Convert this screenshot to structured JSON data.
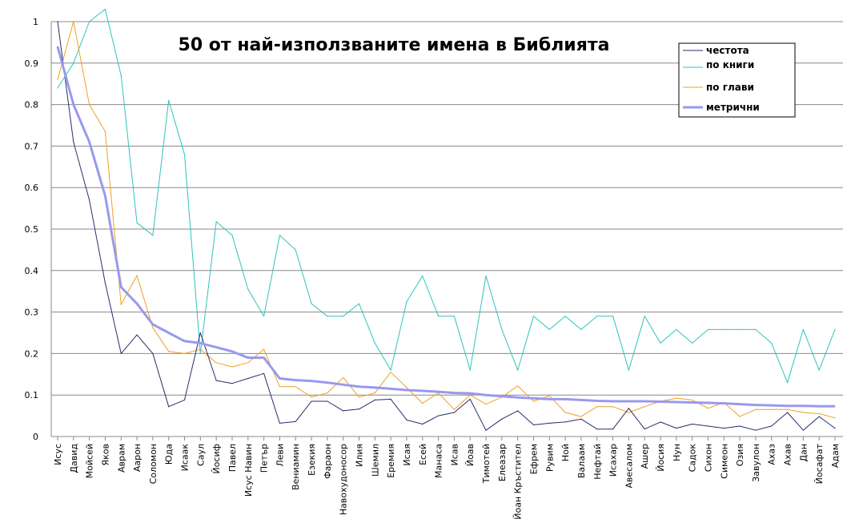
{
  "chart_data": {
    "type": "line",
    "title": "50 от най-използваните имена в Библията",
    "ylim": [
      0,
      1
    ],
    "yticks": [
      0,
      0.1,
      0.2,
      0.3,
      0.4,
      0.5,
      0.6,
      0.7,
      0.8,
      0.9,
      1
    ],
    "ytick_labels": [
      "0",
      "0.1",
      "0.2",
      "0.3",
      "0.4",
      "0.5",
      "0.6",
      "0.7",
      "0.8",
      "0.9",
      "1"
    ],
    "grid": true,
    "legend_position": "top-right",
    "categories": [
      "Исус",
      "Давид",
      "Мойсей",
      "Яков",
      "Аврам",
      "Аарон",
      "Соломон",
      "Юда",
      "Исаак",
      "Саул",
      "Йосиф",
      "Павел",
      "Исус Навин",
      "Петър",
      "Леви",
      "Вениамин",
      "Езекия",
      "Фараон",
      "Навохудоносор",
      "Илия",
      "Шемил",
      "Еремия",
      "Исая",
      "Есей",
      "Манаса",
      "Исав",
      "Йоав",
      "Тимотей",
      "Елеазар",
      "Йоан Кръстител",
      "Ефрем",
      "Рувим",
      "Ной",
      "Валаам",
      "Нефтай",
      "Исахар",
      "Авесалом",
      "Ашер",
      "Йосия",
      "Нун",
      "Садок",
      "Сихон",
      "Симеон",
      "Озия",
      "Завулон",
      "Ахаз",
      "Ахав",
      "Дан",
      "Йосафат",
      "Адам"
    ],
    "series": [
      {
        "name": "честота",
        "color": "#2e2a6e",
        "width": 1,
        "values": [
          1.0,
          0.71,
          0.57,
          0.37,
          0.2,
          0.245,
          0.2,
          0.072,
          0.088,
          0.25,
          0.135,
          0.128,
          0.14,
          0.152,
          0.032,
          0.036,
          0.085,
          0.085,
          0.062,
          0.066,
          0.088,
          0.09,
          0.04,
          0.03,
          0.05,
          0.058,
          0.09,
          0.015,
          0.042,
          0.062,
          0.028,
          0.032,
          0.035,
          0.042,
          0.018,
          0.018,
          0.068,
          0.018,
          0.035,
          0.02,
          0.03,
          0.025,
          0.02,
          0.025,
          0.015,
          0.025,
          0.058,
          0.015,
          0.048,
          0.02
        ]
      },
      {
        "name": "по книги",
        "color": "#2ec4be",
        "width": 1,
        "values": [
          0.84,
          0.9,
          1.0,
          1.03,
          0.87,
          0.515,
          0.485,
          0.81,
          0.68,
          0.2,
          0.518,
          0.485,
          0.355,
          0.29,
          0.485,
          0.45,
          0.32,
          0.29,
          0.29,
          0.32,
          0.225,
          0.16,
          0.325,
          0.387,
          0.29,
          0.29,
          0.16,
          0.387,
          0.258,
          0.16,
          0.29,
          0.258,
          0.29,
          0.258,
          0.29,
          0.29,
          0.16,
          0.29,
          0.225,
          0.258,
          0.225,
          0.258,
          0.258,
          0.258,
          0.258,
          0.225,
          0.13,
          0.258,
          0.16,
          0.258
        ]
      },
      {
        "name": "по глави",
        "color": "#f0a020",
        "width": 1,
        "values": [
          0.86,
          1.0,
          0.8,
          0.735,
          0.318,
          0.388,
          0.262,
          0.205,
          0.2,
          0.21,
          0.178,
          0.168,
          0.178,
          0.21,
          0.12,
          0.12,
          0.095,
          0.105,
          0.142,
          0.095,
          0.105,
          0.155,
          0.118,
          0.08,
          0.105,
          0.065,
          0.1,
          0.078,
          0.095,
          0.122,
          0.085,
          0.098,
          0.058,
          0.048,
          0.072,
          0.072,
          0.058,
          0.072,
          0.085,
          0.092,
          0.088,
          0.068,
          0.082,
          0.048,
          0.065,
          0.065,
          0.065,
          0.058,
          0.055,
          0.045
        ]
      },
      {
        "name": "метрични",
        "color": "#9999ee",
        "width": 3,
        "values": [
          0.94,
          0.8,
          0.71,
          0.58,
          0.36,
          0.32,
          0.27,
          0.25,
          0.23,
          0.225,
          0.215,
          0.205,
          0.19,
          0.19,
          0.14,
          0.136,
          0.134,
          0.13,
          0.125,
          0.12,
          0.118,
          0.115,
          0.112,
          0.11,
          0.108,
          0.105,
          0.104,
          0.1,
          0.097,
          0.094,
          0.092,
          0.09,
          0.09,
          0.088,
          0.086,
          0.085,
          0.085,
          0.085,
          0.084,
          0.083,
          0.082,
          0.081,
          0.08,
          0.078,
          0.076,
          0.075,
          0.074,
          0.074,
          0.073,
          0.073
        ]
      }
    ],
    "legend_entries": [
      "честота",
      "по книги",
      "по глави",
      "метрични"
    ]
  }
}
